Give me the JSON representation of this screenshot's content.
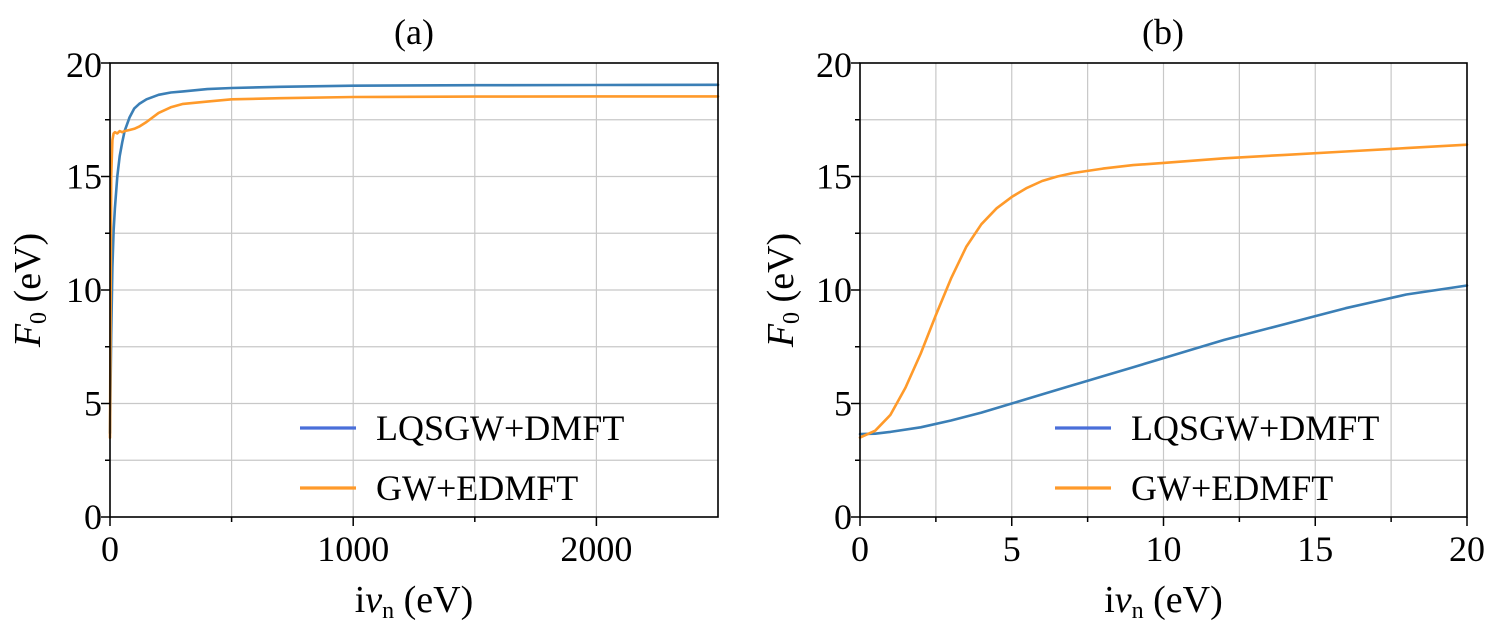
{
  "chart_data": [
    {
      "type": "line",
      "title": "(a)",
      "xlabel": {
        "prefix": "i",
        "symbol": "ν",
        "sub": "n",
        "unit": " (eV)"
      },
      "ylabel": {
        "symbol": "F",
        "sub": "0",
        "unit": " (eV)"
      },
      "xlim": [
        0,
        2500
      ],
      "ylim": [
        0,
        20
      ],
      "x_ticks": [
        0,
        1000,
        2000
      ],
      "x_tick_labels": [
        "0",
        "1000",
        "2000"
      ],
      "x_minor_ticks": [
        500,
        1500
      ],
      "y_ticks": [
        0,
        5,
        10,
        15
      ],
      "y_tick_labels": [
        "0",
        "5",
        "10",
        "15"
      ],
      "y_top_label": "20",
      "y_minor_ticks": [
        2.5,
        7.5,
        12.5,
        17.5
      ],
      "grid": true,
      "legend_position": "lower-right",
      "series": [
        {
          "name": "LQSGW+DMFT",
          "color": "#3b7fb6",
          "x": [
            0,
            5,
            10,
            15,
            20,
            30,
            40,
            50,
            60,
            80,
            100,
            120,
            150,
            200,
            250,
            300,
            400,
            500,
            700,
            1000,
            1500,
            2000,
            2500
          ],
          "y": [
            3.7,
            8.0,
            11.0,
            12.6,
            13.6,
            15.0,
            15.9,
            16.5,
            17.0,
            17.6,
            18.0,
            18.2,
            18.4,
            18.6,
            18.7,
            18.75,
            18.85,
            18.9,
            18.95,
            19.0,
            19.02,
            19.03,
            19.04
          ]
        },
        {
          "name": "GW+EDMFT",
          "color": "#ff9a2a",
          "x": [
            0,
            5,
            10,
            15,
            20,
            30,
            40,
            50,
            60,
            80,
            100,
            120,
            150,
            200,
            250,
            300,
            400,
            500,
            700,
            1000,
            1500,
            2000,
            2500
          ],
          "y": [
            3.5,
            15.0,
            16.6,
            16.9,
            16.95,
            16.9,
            17.0,
            16.95,
            17.0,
            17.05,
            17.1,
            17.2,
            17.4,
            17.8,
            18.05,
            18.2,
            18.3,
            18.4,
            18.45,
            18.5,
            18.52,
            18.53,
            18.53
          ]
        }
      ]
    },
    {
      "type": "line",
      "title": "(b)",
      "xlabel": {
        "prefix": "i",
        "symbol": "ν",
        "sub": "n",
        "unit": " (eV)"
      },
      "ylabel": {
        "symbol": "F",
        "sub": "0",
        "unit": " (eV)"
      },
      "xlim": [
        0,
        20
      ],
      "ylim": [
        0,
        20
      ],
      "x_ticks": [
        0,
        5,
        10,
        15,
        20
      ],
      "x_tick_labels": [
        "0",
        "5",
        "10",
        "15",
        "20"
      ],
      "x_minor_ticks": [
        2.5,
        7.5,
        12.5,
        17.5
      ],
      "y_ticks": [
        0,
        5,
        10,
        15
      ],
      "y_tick_labels": [
        "0",
        "5",
        "10",
        "15"
      ],
      "y_top_label": "20",
      "y_minor_ticks": [
        2.5,
        7.5,
        12.5,
        17.5
      ],
      "grid": true,
      "legend_position": "lower-right",
      "series": [
        {
          "name": "LQSGW+DMFT",
          "color": "#3b7fb6",
          "x": [
            0,
            0.5,
            1,
            2,
            3,
            4,
            5,
            6,
            7,
            8,
            9,
            10,
            11,
            12,
            13,
            14,
            15,
            16,
            17,
            18,
            19,
            20
          ],
          "y": [
            3.65,
            3.67,
            3.75,
            3.95,
            4.25,
            4.6,
            5.0,
            5.4,
            5.8,
            6.2,
            6.6,
            7.0,
            7.4,
            7.8,
            8.15,
            8.5,
            8.85,
            9.2,
            9.5,
            9.8,
            10.0,
            10.2
          ]
        },
        {
          "name": "GW+EDMFT",
          "color": "#ff9a2a",
          "x": [
            0,
            0.5,
            1,
            1.5,
            2,
            2.5,
            3,
            3.5,
            4,
            4.5,
            5,
            5.5,
            6,
            6.5,
            7,
            8,
            9,
            10,
            12,
            14,
            16,
            18,
            20
          ],
          "y": [
            3.5,
            3.8,
            4.5,
            5.7,
            7.2,
            8.9,
            10.5,
            11.9,
            12.9,
            13.6,
            14.1,
            14.5,
            14.8,
            15.0,
            15.15,
            15.35,
            15.5,
            15.6,
            15.8,
            15.95,
            16.1,
            16.25,
            16.4
          ]
        }
      ]
    }
  ]
}
